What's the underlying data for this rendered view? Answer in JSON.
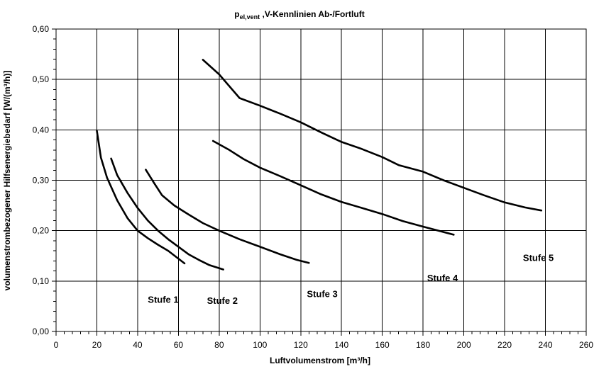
{
  "chart_data": {
    "type": "line",
    "title_main": "p",
    "title_sub": "el,vent",
    "title_rest": " ,V-Kennlinien Ab-/Fortluft",
    "xlabel": "Luftvolumenstrom [m³/h]",
    "ylabel": "volumenstrombezogener Hilfsenergiebedarf [W/(m³/h)]",
    "xlim": [
      0,
      260
    ],
    "ylim": [
      0,
      0.6
    ],
    "x_ticks": [
      0,
      20,
      40,
      60,
      80,
      100,
      120,
      140,
      160,
      180,
      200,
      220,
      240,
      260
    ],
    "x_tick_labels": [
      "0",
      "20",
      "40",
      "60",
      "80",
      "100",
      "120",
      "140",
      "160",
      "180",
      "200",
      "220",
      "240",
      "260"
    ],
    "y_ticks": [
      0,
      0.1,
      0.2,
      0.3,
      0.4,
      0.5,
      0.6
    ],
    "y_tick_labels": [
      "0,00",
      "0,10",
      "0,20",
      "0,30",
      "0,40",
      "0,50",
      "0,60"
    ],
    "grid": true,
    "series": [
      {
        "name": "Stufe 1",
        "label_anchor": [
          45,
          0.057
        ],
        "points": [
          [
            20,
            0.398
          ],
          [
            22,
            0.345
          ],
          [
            25,
            0.305
          ],
          [
            30,
            0.26
          ],
          [
            35,
            0.225
          ],
          [
            40,
            0.2
          ],
          [
            45,
            0.185
          ],
          [
            50,
            0.172
          ],
          [
            55,
            0.16
          ],
          [
            63,
            0.135
          ]
        ]
      },
      {
        "name": "Stufe 2",
        "label_anchor": [
          74,
          0.055
        ],
        "points": [
          [
            27,
            0.343
          ],
          [
            30,
            0.31
          ],
          [
            35,
            0.275
          ],
          [
            40,
            0.245
          ],
          [
            45,
            0.22
          ],
          [
            50,
            0.2
          ],
          [
            55,
            0.183
          ],
          [
            60,
            0.168
          ],
          [
            65,
            0.153
          ],
          [
            70,
            0.142
          ],
          [
            75,
            0.132
          ],
          [
            82,
            0.123
          ]
        ]
      },
      {
        "name": "Stufe 3",
        "label_anchor": [
          123,
          0.068
        ],
        "points": [
          [
            44,
            0.321
          ],
          [
            48,
            0.295
          ],
          [
            52,
            0.27
          ],
          [
            58,
            0.25
          ],
          [
            65,
            0.232
          ],
          [
            72,
            0.215
          ],
          [
            80,
            0.2
          ],
          [
            90,
            0.183
          ],
          [
            100,
            0.168
          ],
          [
            110,
            0.153
          ],
          [
            118,
            0.142
          ],
          [
            124,
            0.136
          ]
        ]
      },
      {
        "name": "Stufe 4",
        "label_anchor": [
          182,
          0.1
        ],
        "points": [
          [
            77,
            0.378
          ],
          [
            85,
            0.36
          ],
          [
            92,
            0.342
          ],
          [
            100,
            0.325
          ],
          [
            110,
            0.308
          ],
          [
            120,
            0.29
          ],
          [
            130,
            0.272
          ],
          [
            140,
            0.257
          ],
          [
            150,
            0.245
          ],
          [
            160,
            0.233
          ],
          [
            170,
            0.219
          ],
          [
            180,
            0.208
          ],
          [
            195,
            0.192
          ]
        ]
      },
      {
        "name": "Stufe 5",
        "label_anchor": [
          229,
          0.14
        ],
        "points": [
          [
            72,
            0.539
          ],
          [
            80,
            0.51
          ],
          [
            90,
            0.463
          ],
          [
            100,
            0.448
          ],
          [
            110,
            0.432
          ],
          [
            120,
            0.415
          ],
          [
            130,
            0.395
          ],
          [
            140,
            0.376
          ],
          [
            150,
            0.362
          ],
          [
            160,
            0.346
          ],
          [
            168,
            0.33
          ],
          [
            180,
            0.317
          ],
          [
            190,
            0.3
          ],
          [
            200,
            0.285
          ],
          [
            210,
            0.27
          ],
          [
            220,
            0.256
          ],
          [
            230,
            0.246
          ],
          [
            238,
            0.24
          ]
        ]
      }
    ]
  }
}
